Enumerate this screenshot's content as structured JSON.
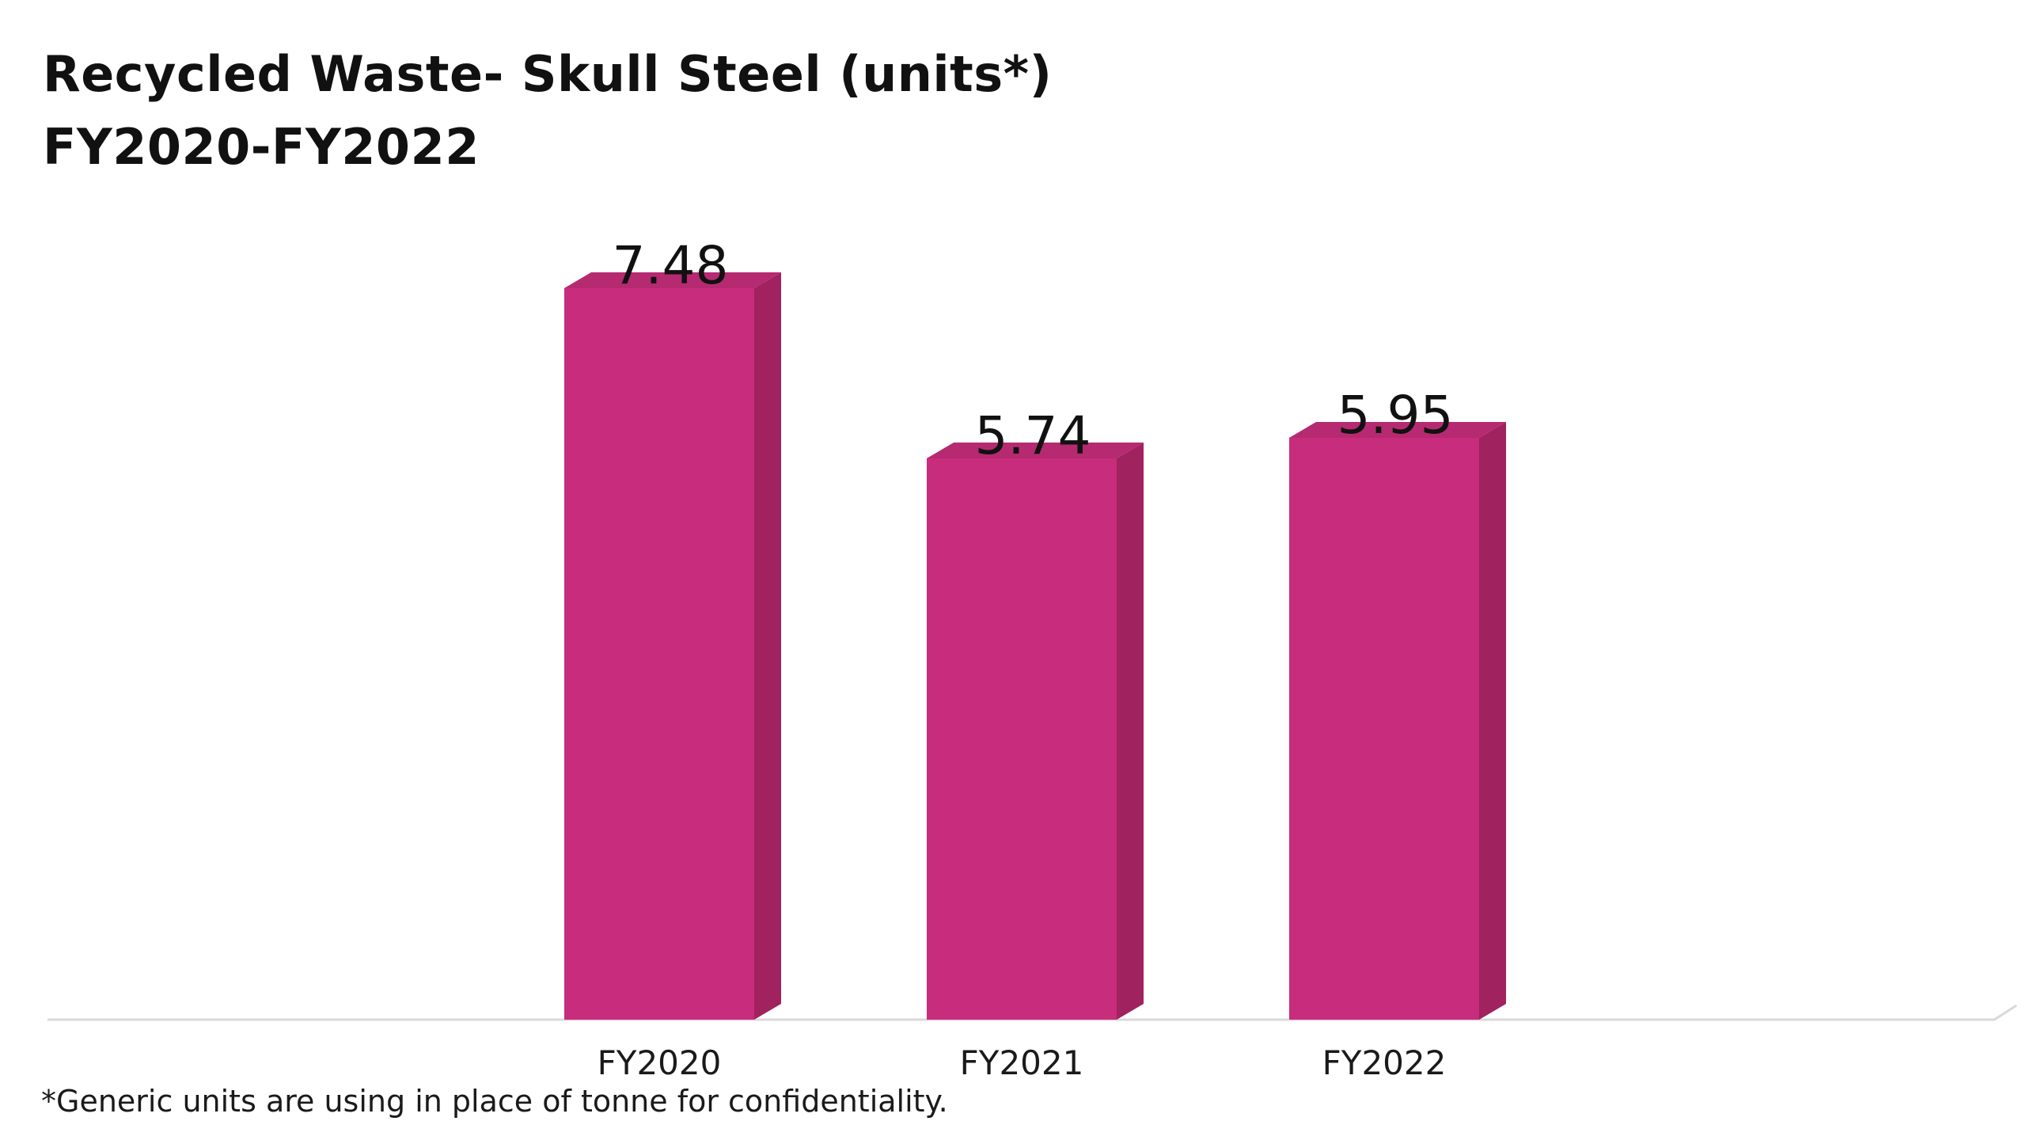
{
  "title": {
    "line1": "Recycled Waste- Skull Steel (units*)",
    "line2": "FY2020-FY2022"
  },
  "footnote": "*Generic units are using in place of tonne for confidentiality.",
  "colors": {
    "bar_front": "#c82c7c",
    "bar_side": "#a0225f",
    "bar_top": "#b52a70",
    "baseline": "#d9d9d9",
    "text": "#111111"
  },
  "chart_data": {
    "type": "bar",
    "categories": [
      "FY2020",
      "FY2021",
      "FY2022"
    ],
    "values": [
      7.48,
      5.74,
      5.95
    ],
    "data_labels": [
      "7.48",
      "5.74",
      "5.95"
    ],
    "title": "Recycled Waste- Skull Steel (units*) FY2020-FY2022",
    "xlabel": "",
    "ylabel": "",
    "ylim": [
      0,
      7.48
    ],
    "grid": false,
    "legend": "none",
    "style": "3d-column"
  }
}
